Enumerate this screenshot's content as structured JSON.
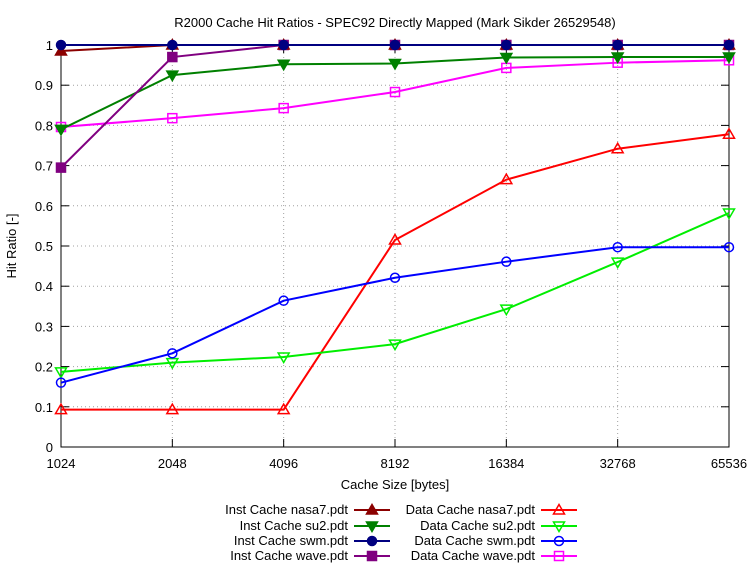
{
  "chart_data": {
    "type": "line",
    "title": "R2000 Cache Hit Ratios - SPEC92 Directly Mapped (Mark Sikder 26529548)",
    "xlabel": "Cache Size [bytes]",
    "ylabel": "Hit Ratio [-]",
    "x_scale": "log2",
    "categories": [
      "1024",
      "2048",
      "4096",
      "8192",
      "16384",
      "32768",
      "65536"
    ],
    "x": [
      1024,
      2048,
      4096,
      8192,
      16384,
      32768,
      65536
    ],
    "ylim": [
      0,
      1
    ],
    "yticks": [
      "0",
      "0.1",
      "0.2",
      "0.3",
      "0.4",
      "0.5",
      "0.6",
      "0.7",
      "0.8",
      "0.9",
      "1"
    ],
    "grid": true,
    "legend_position": "bottom",
    "series": [
      {
        "name": "Inst Cache nasa7.pdt",
        "color": "#8b0000",
        "marker": "triangle-up",
        "filled": true,
        "values": [
          0.985,
          1.0,
          1.0,
          1.0,
          1.0,
          1.0,
          1.0
        ]
      },
      {
        "name": "Inst Cache su2.pdt",
        "color": "#008000",
        "marker": "triangle-down",
        "filled": true,
        "values": [
          0.79,
          0.925,
          0.952,
          0.954,
          0.969,
          0.97,
          0.97
        ]
      },
      {
        "name": "Inst Cache swm.pdt",
        "color": "#000080",
        "marker": "circle",
        "filled": true,
        "values": [
          1.0,
          1.0,
          1.0,
          1.0,
          1.0,
          1.0,
          1.0
        ]
      },
      {
        "name": "Inst Cache wave.pdt",
        "color": "#800080",
        "marker": "square",
        "filled": true,
        "values": [
          0.695,
          0.97,
          1.0,
          1.0,
          1.0,
          1.0,
          1.0
        ]
      },
      {
        "name": "Data Cache nasa7.pdt",
        "color": "#ff0000",
        "marker": "triangle-up",
        "filled": false,
        "values": [
          0.093,
          0.093,
          0.093,
          0.515,
          0.665,
          0.742,
          0.778
        ]
      },
      {
        "name": "Data Cache su2.pdt",
        "color": "#00ee00",
        "marker": "triangle-down",
        "filled": false,
        "values": [
          0.187,
          0.21,
          0.224,
          0.256,
          0.343,
          0.46,
          0.582
        ]
      },
      {
        "name": "Data Cache swm.pdt",
        "color": "#0000ff",
        "marker": "circle",
        "filled": false,
        "values": [
          0.16,
          0.233,
          0.364,
          0.421,
          0.461,
          0.497,
          0.497
        ]
      },
      {
        "name": "Data Cache wave.pdt",
        "color": "#ff00ff",
        "marker": "square",
        "filled": false,
        "values": [
          0.796,
          0.818,
          0.843,
          0.883,
          0.943,
          0.956,
          0.962
        ]
      }
    ]
  }
}
